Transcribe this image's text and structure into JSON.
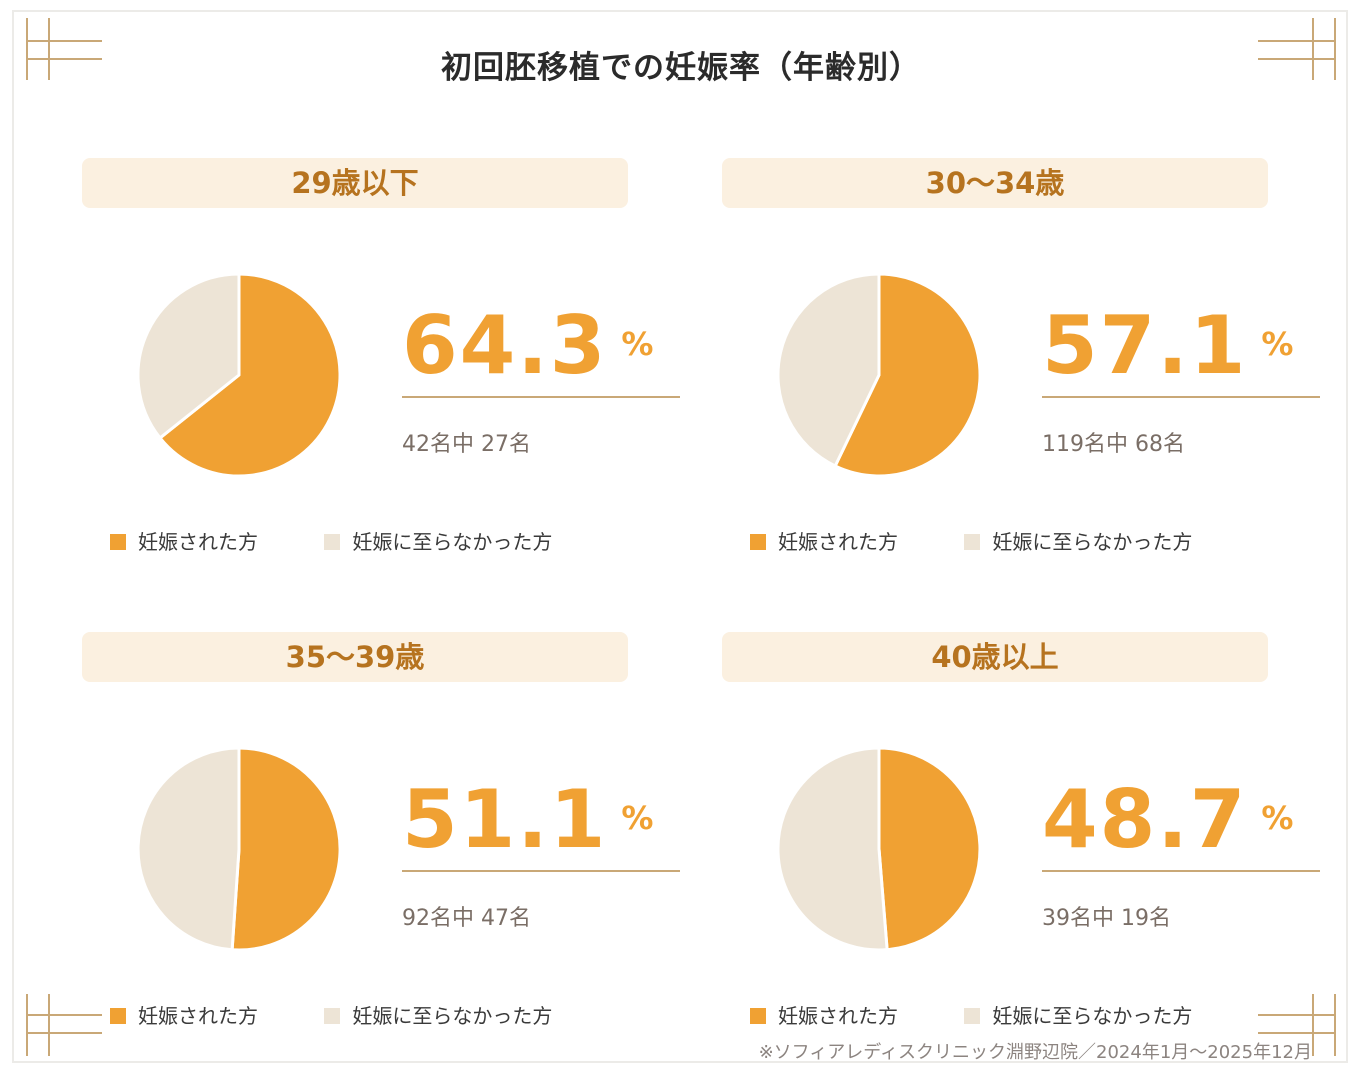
{
  "title": "初回胚移植での妊娠率（年齢別）",
  "colors": {
    "pregnant": "#f0a133",
    "not_pregnant": "#ede4d6",
    "header_bg": "#fbf0e0",
    "header_text": "#b6731f",
    "accent_line": "#c9a877"
  },
  "legend": {
    "pregnant": "妊娠された方",
    "not_pregnant": "妊娠に至らなかった方"
  },
  "pct_unit": "%",
  "footnote": "※ソフィアレディスクリニック淵野辺院／2024年1月〜2025年12月",
  "chart_data": [
    {
      "type": "pie",
      "title": "29歳以下",
      "labels": [
        "妊娠された方",
        "妊娠に至らなかった方"
      ],
      "values": [
        27,
        15
      ],
      "percent": "64.3",
      "count_text": "42名中 27名"
    },
    {
      "type": "pie",
      "title": "30〜34歳",
      "labels": [
        "妊娠された方",
        "妊娠に至らなかった方"
      ],
      "values": [
        68,
        51
      ],
      "percent": "57.1",
      "count_text": "119名中 68名"
    },
    {
      "type": "pie",
      "title": "35〜39歳",
      "labels": [
        "妊娠された方",
        "妊娠に至らなかった方"
      ],
      "values": [
        47,
        45
      ],
      "percent": "51.1",
      "count_text": "92名中 47名"
    },
    {
      "type": "pie",
      "title": "40歳以上",
      "labels": [
        "妊娠された方",
        "妊娠に至らなかった方"
      ],
      "values": [
        19,
        20
      ],
      "percent": "48.7",
      "count_text": "39名中 19名"
    }
  ]
}
